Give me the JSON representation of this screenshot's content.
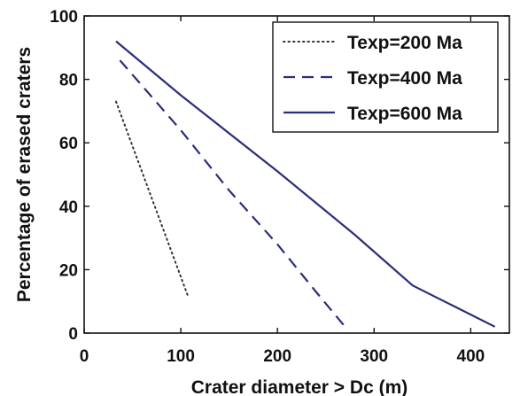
{
  "chart_data": {
    "type": "line",
    "title": "",
    "xlabel": "Crater diameter > Dc (m)",
    "ylabel": "Percentage of erased craters",
    "xlim": [
      0,
      440
    ],
    "ylim": [
      0,
      100
    ],
    "xticks": [
      0,
      100,
      200,
      300,
      400
    ],
    "yticks": [
      0,
      20,
      40,
      60,
      80,
      100
    ],
    "grid": false,
    "legend_position": "top-right",
    "series": [
      {
        "name": "Texp=200 Ma",
        "line_style": "dotted",
        "color": "#333333",
        "points": [
          [
            33,
            73
          ],
          [
            107,
            12
          ]
        ]
      },
      {
        "name": "Texp=400 Ma",
        "line_style": "dashed",
        "color": "#2b2d7a",
        "points": [
          [
            37,
            86
          ],
          [
            100,
            64
          ],
          [
            150,
            45
          ],
          [
            200,
            28
          ],
          [
            240,
            13
          ],
          [
            270,
            2
          ]
        ]
      },
      {
        "name": "Texp=600 Ma",
        "line_style": "solid",
        "color": "#2b2d7a",
        "points": [
          [
            33,
            92
          ],
          [
            100,
            75
          ],
          [
            200,
            51
          ],
          [
            280,
            31
          ],
          [
            340,
            15
          ],
          [
            425,
            2
          ]
        ]
      }
    ]
  }
}
